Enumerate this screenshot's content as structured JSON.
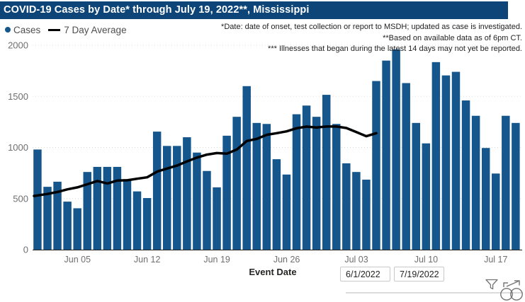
{
  "title": "COVID-19 Cases by Date* through July 19, 2022**, Mississippi",
  "legend": {
    "cases_label": "Cases",
    "average_label": "7 Day Average"
  },
  "annotations": {
    "line1": "*Date: date of onset, test collection or report to MSDH; updated as case is investigated.",
    "line2": "**Based on available data as of 6pm CT.",
    "line3": "*** Illnesses that began during the latest 14 days may not yet be reported."
  },
  "x_axis_title": "Event Date",
  "slicer": {
    "start_value": "6/1/2022",
    "end_value": "7/19/2022"
  },
  "icons": {
    "filter": "filter-funnel",
    "focus": "focus-mode"
  },
  "colors": {
    "title_bg": "#0d4578",
    "bar": "#15568c",
    "line": "#000000",
    "grid": "#dbdbdb",
    "axis_text": "#6f6f6f",
    "axis_line": "#252423",
    "legend_text": "#4f4f4f",
    "annotation_text": "#1f1f1f",
    "icon": "#757575",
    "box_border": "#c9c9c9"
  },
  "chart_data": {
    "type": "bar",
    "title": "COVID-19 Cases by Date* through July 19, 2022**, Mississippi",
    "xlabel": "Event Date",
    "ylabel": "",
    "ylim": [
      0,
      2000
    ],
    "grid": true,
    "legend_position": "top-left",
    "y_ticks": [
      0,
      500,
      1000,
      1500,
      2000
    ],
    "x_ticks": [
      {
        "index": 4,
        "label": "Jun 05"
      },
      {
        "index": 11,
        "label": "Jun 12"
      },
      {
        "index": 18,
        "label": "Jun 19"
      },
      {
        "index": 25,
        "label": "Jun 26"
      },
      {
        "index": 32,
        "label": "Jul 03"
      },
      {
        "index": 39,
        "label": "Jul 10"
      },
      {
        "index": 46,
        "label": "Jul 17"
      }
    ],
    "dates": [
      "Jun 01",
      "Jun 02",
      "Jun 03",
      "Jun 04",
      "Jun 05",
      "Jun 06",
      "Jun 07",
      "Jun 08",
      "Jun 09",
      "Jun 10",
      "Jun 11",
      "Jun 12",
      "Jun 13",
      "Jun 14",
      "Jun 15",
      "Jun 16",
      "Jun 17",
      "Jun 18",
      "Jun 19",
      "Jun 20",
      "Jun 21",
      "Jun 22",
      "Jun 23",
      "Jun 24",
      "Jun 25",
      "Jun 26",
      "Jun 27",
      "Jun 28",
      "Jun 29",
      "Jun 30",
      "Jul 01",
      "Jul 02",
      "Jul 03",
      "Jul 04",
      "Jul 05",
      "Jul 06",
      "Jul 07",
      "Jul 08",
      "Jul 09",
      "Jul 10",
      "Jul 11",
      "Jul 12",
      "Jul 13",
      "Jul 14",
      "Jul 15",
      "Jul 16",
      "Jul 17",
      "Jul 18",
      "Jul 19"
    ],
    "series": [
      {
        "name": "Cases",
        "render": "bar",
        "values": [
          980,
          615,
          665,
          470,
          405,
          760,
          810,
          810,
          810,
          690,
          570,
          505,
          1155,
          1015,
          1015,
          1100,
          950,
          770,
          610,
          1115,
          1300,
          1600,
          1240,
          1230,
          885,
          735,
          1325,
          1410,
          1300,
          1515,
          1230,
          845,
          760,
          685,
          1650,
          1850,
          1960,
          1630,
          1240,
          1040,
          1835,
          1705,
          1740,
          1460,
          1310,
          995,
          745,
          1310,
          1240
        ]
      },
      {
        "name": "7 Day Average",
        "render": "line",
        "values": [
          525,
          545,
          565,
          590,
          610,
          640,
          672,
          648,
          676,
          679,
          694,
          708,
          764,
          794,
          823,
          864,
          901,
          930,
          945,
          939,
          980,
          1064,
          1084,
          1124,
          1140,
          1158,
          1188,
          1204,
          1195,
          1205,
          1205,
          1190,
          1150,
          1110,
          1140,
          null,
          null,
          null,
          null,
          null,
          null,
          null,
          null,
          null,
          null,
          null,
          null,
          null,
          null
        ]
      }
    ]
  }
}
